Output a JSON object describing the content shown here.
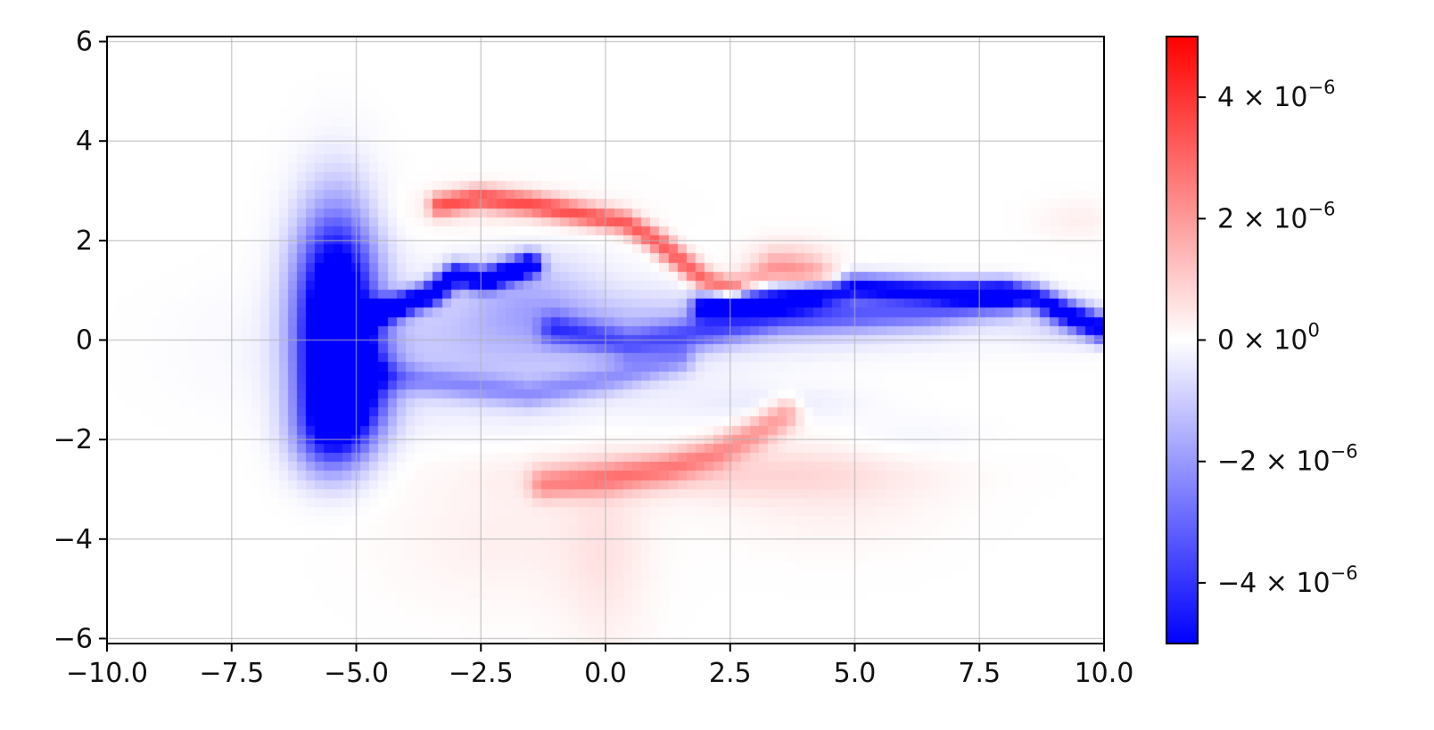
{
  "chart_data": {
    "type": "heatmap",
    "title": "",
    "xlabel": "",
    "ylabel": "",
    "xlim": [
      -10,
      10
    ],
    "ylim": [
      -6.1,
      6.1
    ],
    "x_ticks": [
      {
        "value": -10,
        "label": "−10.0"
      },
      {
        "value": -7.5,
        "label": "−7.5"
      },
      {
        "value": -5,
        "label": "−5.0"
      },
      {
        "value": -2.5,
        "label": "−2.5"
      },
      {
        "value": 0,
        "label": "0.0"
      },
      {
        "value": 2.5,
        "label": "2.5"
      },
      {
        "value": 5,
        "label": "5.0"
      },
      {
        "value": 7.5,
        "label": "7.5"
      },
      {
        "value": 10,
        "label": "10.0"
      }
    ],
    "y_ticks": [
      {
        "value": 6,
        "label": "6"
      },
      {
        "value": 4,
        "label": "4"
      },
      {
        "value": 2,
        "label": "2"
      },
      {
        "value": 0,
        "label": "0"
      },
      {
        "value": -2,
        "label": "−2"
      },
      {
        "value": -4,
        "label": "−4"
      },
      {
        "value": -6,
        "label": "−6"
      }
    ],
    "grid": true,
    "colormap": "bwr",
    "colormap_colors": {
      "min": "#0000ff",
      "mid": "#ffffff",
      "max": "#ff0000"
    },
    "vmin": -5e-06,
    "vmax": 5e-06,
    "colorbar_ticks": [
      {
        "value": 4e-06,
        "mantissa": "4",
        "exponent": "−6"
      },
      {
        "value": 2e-06,
        "mantissa": "2",
        "exponent": "−6"
      },
      {
        "value": 0,
        "mantissa": "0",
        "exponent": "0"
      },
      {
        "value": -2e-06,
        "mantissa": "−2",
        "exponent": "−6"
      },
      {
        "value": -4e-06,
        "mantissa": "−4",
        "exponent": "−6"
      }
    ],
    "features": [
      {
        "kind": "blob",
        "cx": -5.4,
        "cy": 0.7,
        "sx": 0.55,
        "sy": 1.3,
        "v": -7e-06
      },
      {
        "kind": "blob",
        "cx": -5.2,
        "cy": -1.0,
        "sx": 0.55,
        "sy": 0.8,
        "v": -6e-06
      },
      {
        "kind": "blob",
        "cx": -5.6,
        "cy": -1.9,
        "sx": 0.5,
        "sy": 0.6,
        "v": -2.6e-06
      },
      {
        "kind": "blob",
        "cx": -2.2,
        "cy": -0.2,
        "sx": 2.6,
        "sy": 0.9,
        "v": -1.1e-06
      },
      {
        "kind": "blob",
        "cx": -1.5,
        "cy": 0.9,
        "sx": 0.9,
        "sy": 0.6,
        "v": -1e-06
      },
      {
        "kind": "blob",
        "cx": 3.0,
        "cy": 0.35,
        "sx": 3.0,
        "sy": 0.4,
        "v": -1e-06
      },
      {
        "kind": "blob",
        "cx": 9.5,
        "cy": 0.3,
        "sx": 0.8,
        "sy": 0.3,
        "v": -8e-07
      },
      {
        "kind": "blob",
        "cx": 3.7,
        "cy": 1.6,
        "sx": 0.6,
        "sy": 0.3,
        "v": 8e-07
      },
      {
        "kind": "blob",
        "cx": 2.0,
        "cy": -2.7,
        "sx": 2.5,
        "sy": 0.35,
        "v": 7e-07
      },
      {
        "kind": "blob",
        "cx": 0.0,
        "cy": -4.3,
        "sx": 0.6,
        "sy": 1.4,
        "v": 4.5e-07
      },
      {
        "kind": "blob",
        "cx": -2.0,
        "cy": -4.0,
        "sx": 1.6,
        "sy": 1.0,
        "v": 3e-07
      },
      {
        "kind": "blob",
        "cx": 4.5,
        "cy": -3.0,
        "sx": 1.5,
        "sy": 0.8,
        "v": 3.5e-07
      },
      {
        "kind": "blob",
        "cx": -2.0,
        "cy": 2.6,
        "sx": 1.6,
        "sy": 0.35,
        "v": 3.5e-07
      },
      {
        "kind": "blob",
        "cx": 9.5,
        "cy": 2.4,
        "sx": 0.6,
        "sy": 0.3,
        "v": 3e-07
      },
      {
        "kind": "blob",
        "cx": 3.5,
        "cy": -1.3,
        "sx": 1.2,
        "sy": 0.25,
        "v": -4e-07
      },
      {
        "kind": "blob",
        "cx": 6.0,
        "cy": -2.0,
        "sx": 1.0,
        "sy": 0.3,
        "v": -2.5e-07
      },
      {
        "kind": "polyline",
        "w": 0.16,
        "v": -6e-06,
        "points": [
          [
            -4.8,
            0.45
          ],
          [
            -3.5,
            0.9
          ],
          [
            -3.0,
            1.3
          ],
          [
            -2.4,
            1.2
          ],
          [
            -1.5,
            1.5
          ]
        ]
      },
      {
        "kind": "polyline",
        "w": 0.18,
        "v": -5e-06,
        "points": [
          [
            2.0,
            0.65
          ],
          [
            3.0,
            0.75
          ],
          [
            4.0,
            0.85
          ],
          [
            5.0,
            1.05
          ],
          [
            6.0,
            1.0
          ],
          [
            7.0,
            0.95
          ],
          [
            8.0,
            0.95
          ],
          [
            8.6,
            0.85
          ],
          [
            9.2,
            0.55
          ],
          [
            10.0,
            0.2
          ]
        ]
      },
      {
        "kind": "polyline",
        "w": 0.22,
        "v": -2.5e-06,
        "points": [
          [
            -1.0,
            0.2
          ],
          [
            0.5,
            -0.1
          ],
          [
            2.0,
            0.15
          ],
          [
            3.5,
            0.45
          ],
          [
            5.0,
            0.5
          ],
          [
            6.5,
            0.55
          ],
          [
            8.0,
            0.75
          ]
        ]
      },
      {
        "kind": "polyline",
        "w": 0.2,
        "v": -1.6e-06,
        "points": [
          [
            -4.6,
            -0.7
          ],
          [
            -3.0,
            -0.9
          ],
          [
            -1.5,
            -1.1
          ],
          [
            0.0,
            -0.8
          ],
          [
            1.5,
            -0.4
          ]
        ]
      },
      {
        "kind": "polyline",
        "w": 0.16,
        "v": 3.2e-06,
        "points": [
          [
            -3.3,
            2.7
          ],
          [
            -2.5,
            2.85
          ],
          [
            -1.5,
            2.72
          ],
          [
            -0.5,
            2.52
          ],
          [
            0.4,
            2.35
          ],
          [
            1.0,
            2.0
          ],
          [
            1.5,
            1.6
          ],
          [
            2.0,
            1.2
          ],
          [
            2.5,
            1.0
          ]
        ]
      },
      {
        "kind": "polyline",
        "w": 0.2,
        "v": 1.6e-06,
        "points": [
          [
            2.8,
            1.1
          ],
          [
            3.4,
            1.4
          ],
          [
            4.2,
            1.3
          ],
          [
            4.5,
            1.15
          ]
        ]
      },
      {
        "kind": "polyline",
        "w": 0.22,
        "v": 2e-06,
        "points": [
          [
            -1.2,
            -2.9
          ],
          [
            0.0,
            -2.8
          ],
          [
            1.2,
            -2.6
          ],
          [
            2.2,
            -2.3
          ],
          [
            3.0,
            -1.9
          ],
          [
            3.6,
            -1.5
          ]
        ]
      }
    ]
  }
}
